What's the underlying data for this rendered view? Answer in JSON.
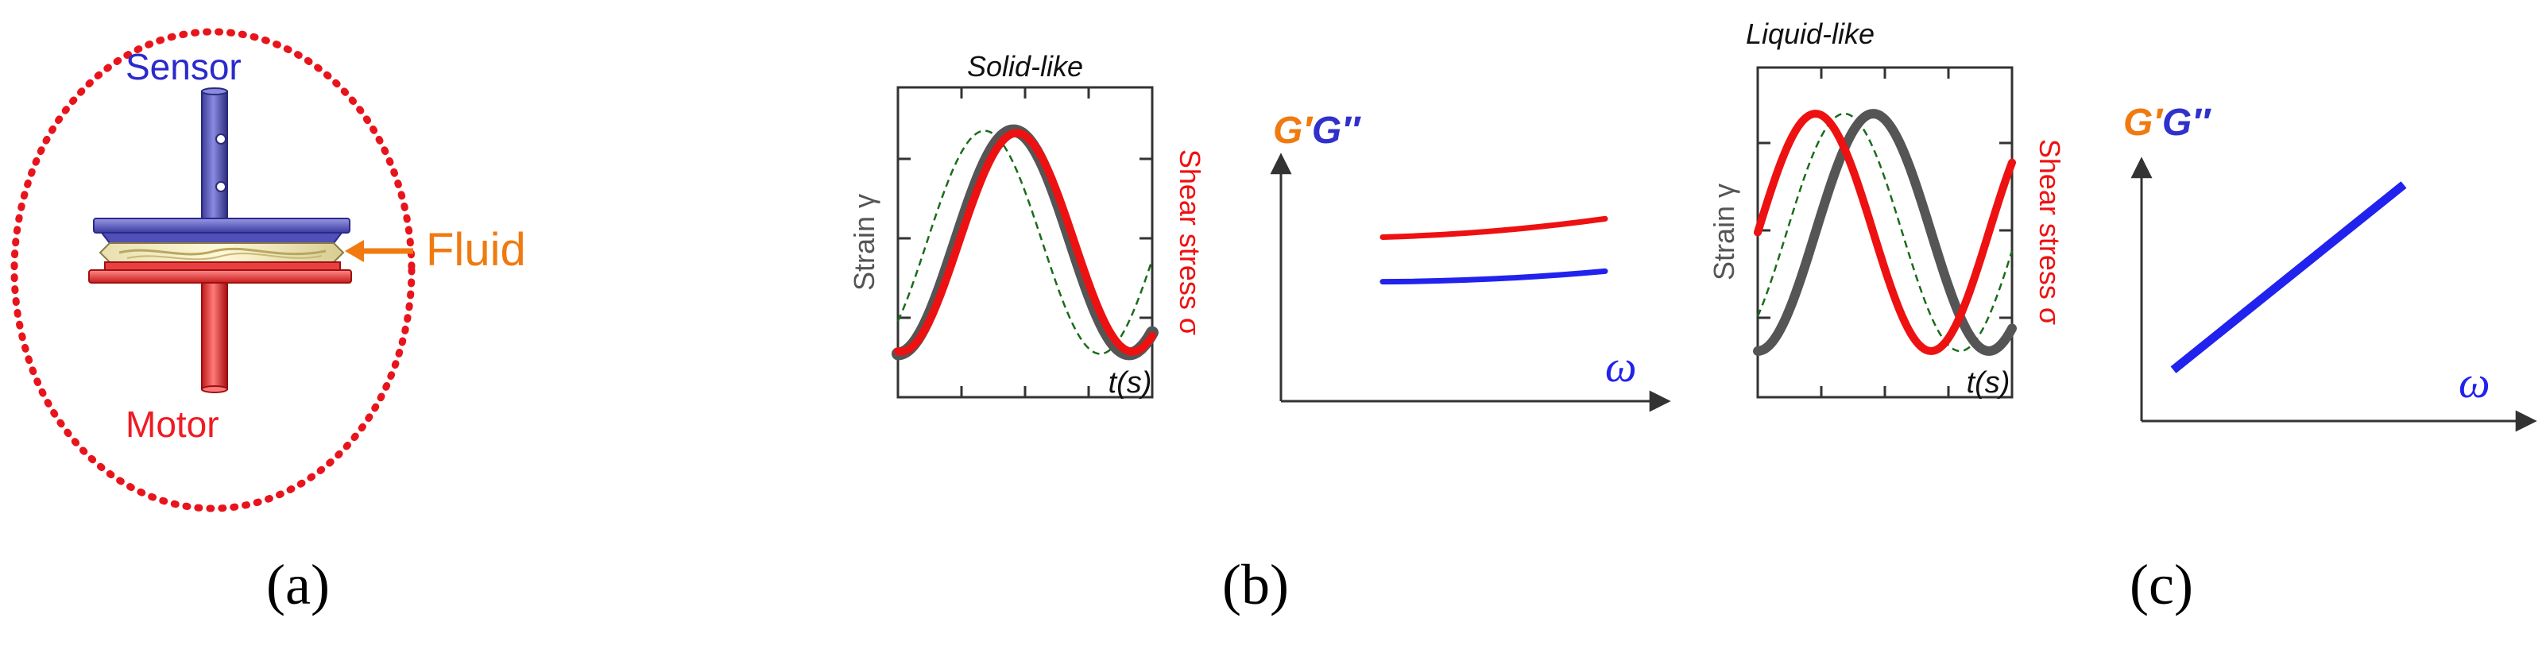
{
  "panel_a": {
    "sensor_label": "Sensor",
    "fluid_label": "Fluid",
    "motor_label": "Motor",
    "caption": "(a)",
    "colors": {
      "sensor": "#2a2acc",
      "fluid": "#f07a10",
      "motor": "#ee1c24",
      "outline": "#e8141c"
    }
  },
  "panel_b": {
    "title": "Solid-like",
    "strain_label": "Strain γ",
    "stress_label": "Shear stress σ",
    "time_label": "t(s)",
    "modulus_label_g1": "G′",
    "modulus_label_g2": "G″",
    "omega_label": "ω",
    "caption": "(b)"
  },
  "panel_c": {
    "title": "Liquid-like",
    "strain_label": "Strain γ",
    "stress_label": "Shear stress σ",
    "time_label": "t(s)",
    "modulus_label_g1": "G′",
    "modulus_label_g2": "G″",
    "omega_label": "ω",
    "caption": "(c)"
  },
  "chart_data": [
    {
      "type": "line",
      "title": "Solid-like",
      "xlabel": "t(s)",
      "ylabel": "Strain γ",
      "y2label": "Shear stress σ",
      "series": [
        {
          "name": "strain",
          "style": "solid",
          "color": "#555555",
          "phase_deg": 0
        },
        {
          "name": "shear stress",
          "style": "solid",
          "color": "#ee1111",
          "phase_deg": -5
        },
        {
          "name": "reference",
          "style": "dashed",
          "color": "#1a6b1a",
          "phase_deg": 45
        }
      ]
    },
    {
      "type": "line",
      "title": "",
      "xlabel": "ω",
      "ylabel": "G′G″",
      "series": [
        {
          "name": "G′",
          "color": "#ee1111",
          "x": [
            0,
            0.5,
            1
          ],
          "y": [
            0.55,
            0.58,
            0.62
          ]
        },
        {
          "name": "G″",
          "color": "#2222ee",
          "x": [
            0,
            0.5,
            1
          ],
          "y": [
            0.38,
            0.4,
            0.42
          ]
        }
      ],
      "xlim": [
        0,
        1
      ],
      "ylim": [
        0,
        1
      ]
    },
    {
      "type": "line",
      "title": "Liquid-like",
      "xlabel": "t(s)",
      "ylabel": "Strain γ",
      "y2label": "Shear stress σ",
      "series": [
        {
          "name": "strain",
          "style": "solid",
          "color": "#555555",
          "phase_deg": 0
        },
        {
          "name": "shear stress",
          "style": "solid",
          "color": "#ee1111",
          "phase_deg": 90
        },
        {
          "name": "reference",
          "style": "dashed",
          "color": "#1a6b1a",
          "phase_deg": 45
        }
      ]
    },
    {
      "type": "line",
      "title": "",
      "xlabel": "ω",
      "ylabel": "G′G″",
      "series": [
        {
          "name": "G″",
          "color": "#2222ee",
          "x": [
            0,
            1
          ],
          "y": [
            0.12,
            0.75
          ]
        }
      ],
      "xlim": [
        0,
        1
      ],
      "ylim": [
        0,
        1
      ]
    }
  ]
}
